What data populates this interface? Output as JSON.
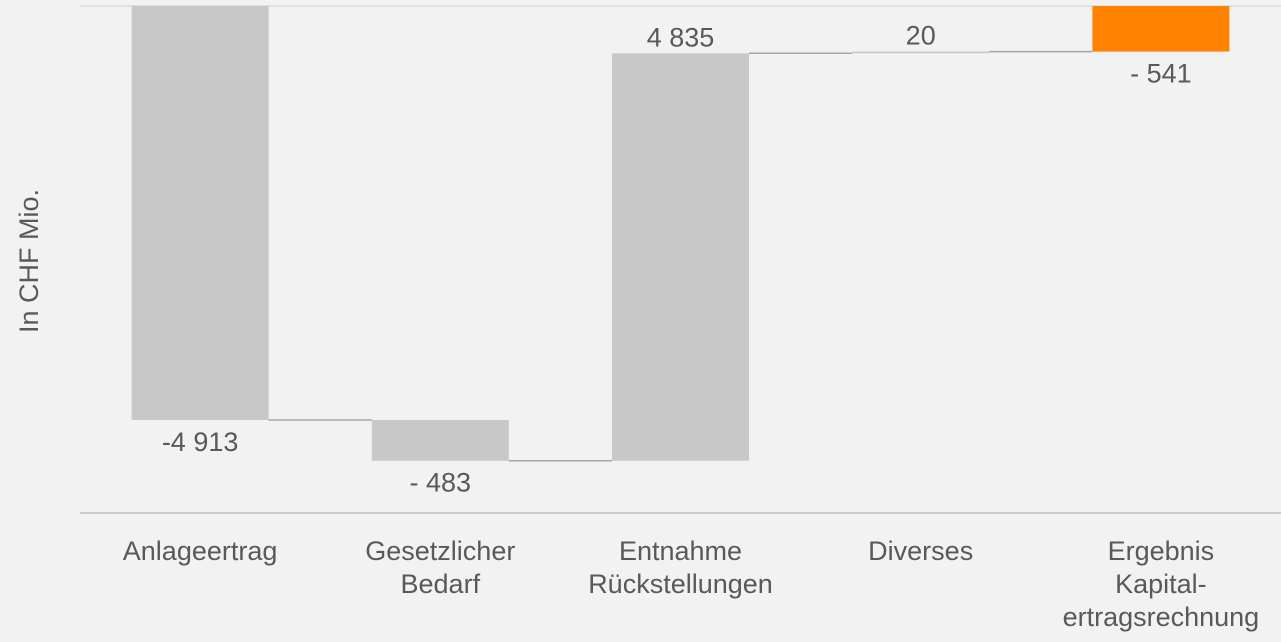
{
  "chart_data": {
    "type": "waterfall",
    "ylabel": "In CHF Mio.",
    "categories": [
      [
        "Anlageertrag"
      ],
      [
        "Gesetzlicher",
        "Bedarf"
      ],
      [
        "Entnahme",
        "Rückstellungen"
      ],
      [
        "Diverses"
      ],
      [
        "Ergebnis",
        "Kapital-",
        "ertragsrechnung"
      ]
    ],
    "values": [
      -4913,
      -483,
      4835,
      20,
      -541
    ],
    "value_labels": [
      "-4 913",
      "- 483",
      "4 835",
      "20",
      "- 541"
    ],
    "total_index": 4,
    "colors": {
      "bar": "#c8c8c8",
      "total": "#ff8300",
      "connector": "#a6a6a6",
      "axis": "#bfbfbf",
      "gridline": "#d9d9d9",
      "text": "#595959"
    },
    "grid": false
  }
}
